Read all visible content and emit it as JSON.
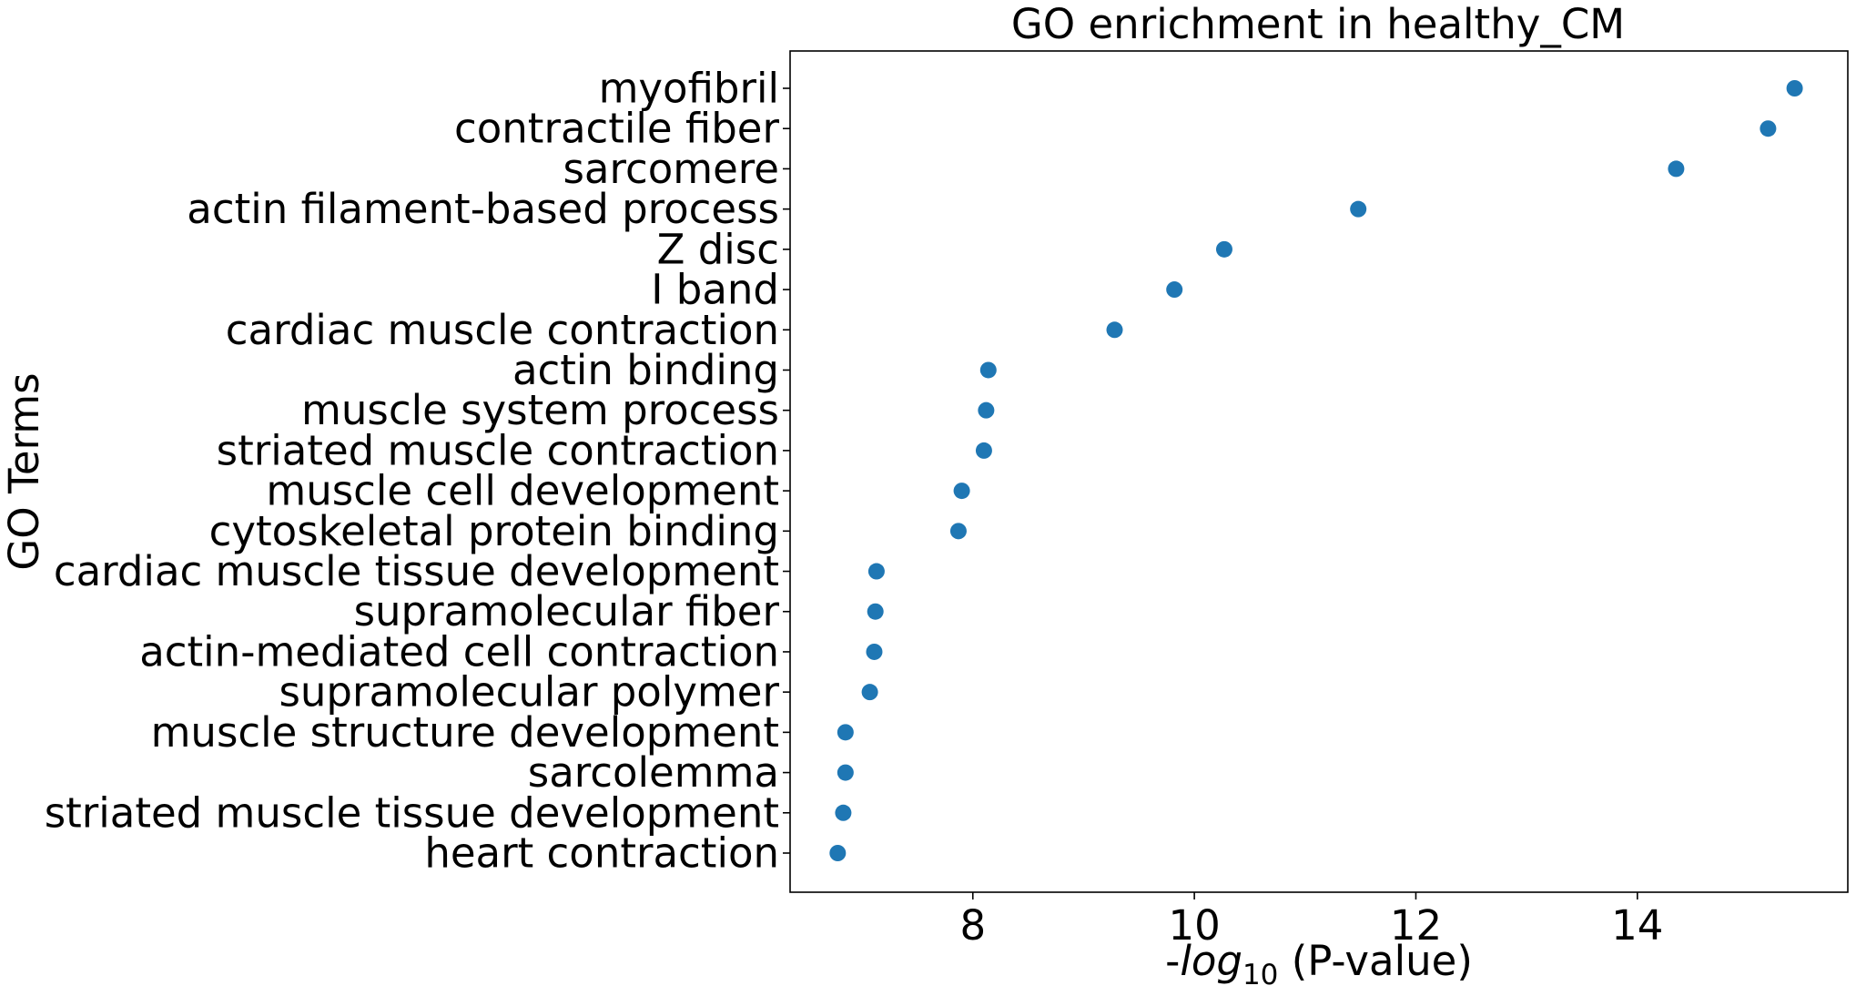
{
  "chart_data": {
    "type": "scatter",
    "title": "GO enrichment in healthy_CM",
    "xlabel": {
      "prefix": "-",
      "italic": "log",
      "subscript": "10",
      "suffix": " (P-value)"
    },
    "ylabel": "GO Terms",
    "xlim": [
      6.35,
      15.9
    ],
    "xticks": [
      8,
      10,
      12,
      14
    ],
    "grid": false,
    "legend": "none",
    "marker_color": "#1f77b4",
    "categories": [
      "myofibril",
      "contractile fiber",
      "sarcomere",
      "actin filament-based process",
      "Z disc",
      "I band",
      "cardiac muscle contraction",
      "actin binding",
      "muscle system process",
      "striated muscle contraction",
      "muscle cell development",
      "cytoskeletal protein binding",
      "cardiac muscle tissue development",
      "supramolecular fiber",
      "actin-mediated cell contraction",
      "supramolecular polymer",
      "muscle structure development",
      "sarcolemma",
      "striated muscle tissue development",
      "heart contraction"
    ],
    "values": [
      15.42,
      15.18,
      14.35,
      11.48,
      10.27,
      9.82,
      9.28,
      8.14,
      8.12,
      8.1,
      7.9,
      7.87,
      7.13,
      7.12,
      7.11,
      7.07,
      6.85,
      6.85,
      6.83,
      6.78
    ]
  }
}
